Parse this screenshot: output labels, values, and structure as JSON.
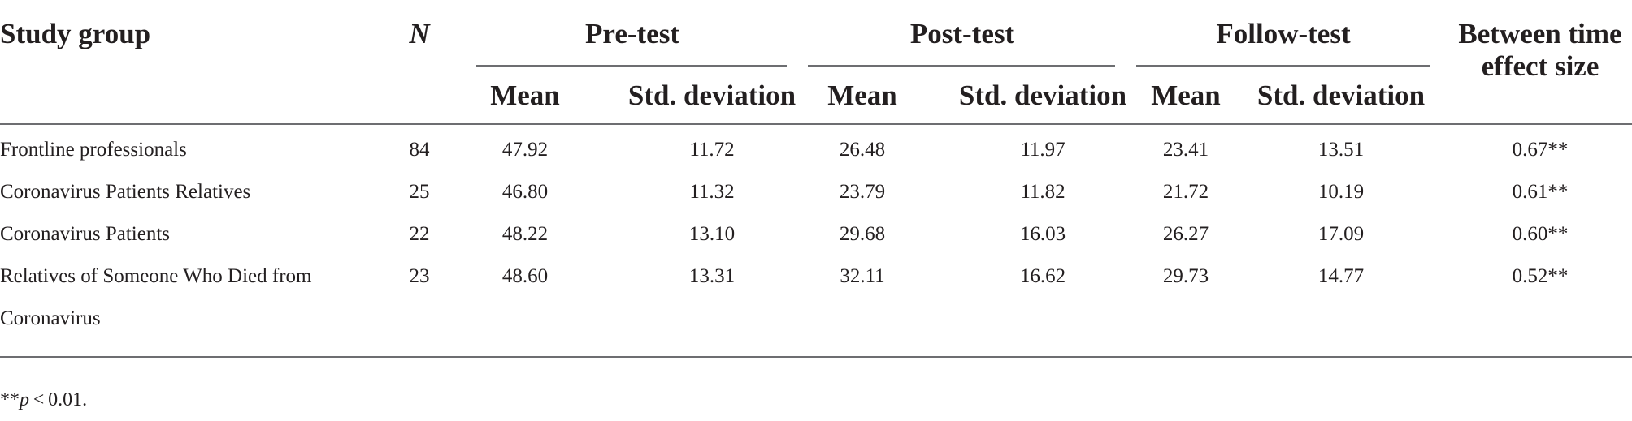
{
  "table": {
    "headers": {
      "study_group": "Study group",
      "n": "N",
      "pre_test": "Pre-test",
      "post_test": "Post-test",
      "follow_test": "Follow-test",
      "effect_line1": "Between time",
      "effect_line2": "effect size",
      "mean": "Mean",
      "sd": "Std. deviation"
    },
    "rows": [
      {
        "group": "Frontline professionals",
        "group_line2": "",
        "n": "84",
        "pre_mean": "47.92",
        "pre_sd": "11.72",
        "post_mean": "26.48",
        "post_sd": "11.97",
        "follow_mean": "23.41",
        "follow_sd": "13.51",
        "effect": "0.67**"
      },
      {
        "group": "Coronavirus Patients Relatives",
        "group_line2": "",
        "n": "25",
        "pre_mean": "46.80",
        "pre_sd": "11.32",
        "post_mean": "23.79",
        "post_sd": "11.82",
        "follow_mean": "21.72",
        "follow_sd": "10.19",
        "effect": "0.61**"
      },
      {
        "group": "Coronavirus Patients",
        "group_line2": "",
        "n": "22",
        "pre_mean": "48.22",
        "pre_sd": "13.10",
        "post_mean": "29.68",
        "post_sd": "16.03",
        "follow_mean": "26.27",
        "follow_sd": "17.09",
        "effect": "0.60**"
      },
      {
        "group": "Relatives of Someone Who Died from",
        "group_line2": "Coronavirus",
        "n": "23",
        "pre_mean": "48.60",
        "pre_sd": "13.31",
        "post_mean": "32.11",
        "post_sd": "16.62",
        "follow_mean": "29.73",
        "follow_sd": "14.77",
        "effect": "0.52**"
      }
    ],
    "footnote": {
      "stars": "**",
      "p": "p",
      "rest": " < 0.01."
    }
  }
}
